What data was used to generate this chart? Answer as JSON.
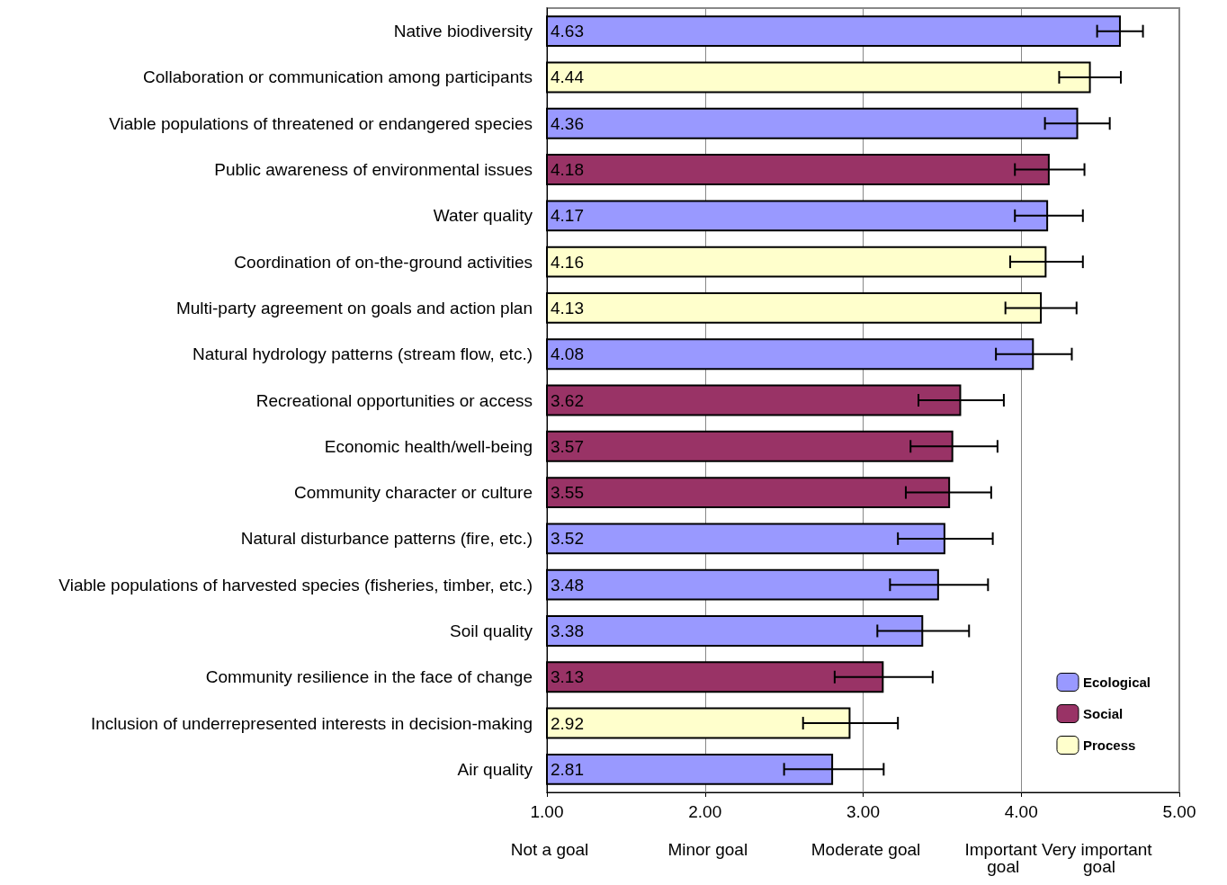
{
  "chart_data": {
    "type": "bar",
    "orientation": "horizontal",
    "categories": [
      "Native biodiversity",
      "Collaboration or communication among participants",
      "Viable populations of threatened or endangered species",
      "Public awareness of environmental issues",
      "Water quality",
      "Coordination of on-the-ground activities",
      "Multi-party agreement on goals and action plan",
      "Natural hydrology patterns (stream flow, etc.)",
      "Recreational opportunities or access",
      "Economic health/well-being",
      "Community character or culture",
      "Natural disturbance patterns (fire, etc.)",
      "Viable populations of harvested species (fisheries, timber, etc.)",
      "Soil quality",
      "Community resilience in the face of change",
      "Inclusion of underrepresented interests in decision-making",
      "Air quality"
    ],
    "series": [
      {
        "name": "Ecological",
        "color": "#9999ff",
        "values": [
          4.63,
          null,
          4.36,
          null,
          4.17,
          null,
          null,
          4.08,
          null,
          null,
          null,
          3.52,
          3.48,
          3.38,
          null,
          null,
          2.81
        ],
        "errors": [
          [
            4.48,
            4.77
          ],
          null,
          [
            4.15,
            4.56
          ],
          null,
          [
            3.96,
            4.39
          ],
          null,
          null,
          [
            3.84,
            4.32
          ],
          null,
          null,
          null,
          [
            3.22,
            3.82
          ],
          [
            3.17,
            3.79
          ],
          [
            3.09,
            3.67
          ],
          null,
          null,
          [
            2.5,
            3.13
          ]
        ]
      },
      {
        "name": "Social",
        "color": "#993366",
        "values": [
          null,
          null,
          null,
          4.18,
          null,
          null,
          null,
          null,
          3.62,
          3.57,
          3.55,
          null,
          null,
          null,
          3.13,
          null,
          null
        ],
        "errors": [
          null,
          null,
          null,
          [
            3.96,
            4.4
          ],
          null,
          null,
          null,
          null,
          [
            3.35,
            3.89
          ],
          [
            3.3,
            3.85
          ],
          [
            3.27,
            3.81
          ],
          null,
          null,
          null,
          [
            2.82,
            3.44
          ],
          null,
          null
        ]
      },
      {
        "name": "Process",
        "color": "#ffffcc",
        "values": [
          null,
          4.44,
          null,
          null,
          null,
          4.16,
          4.13,
          null,
          null,
          null,
          null,
          null,
          null,
          null,
          null,
          2.92,
          null
        ],
        "errors": [
          null,
          [
            4.24,
            4.63
          ],
          null,
          null,
          null,
          [
            3.93,
            4.39
          ],
          [
            3.9,
            4.35
          ],
          null,
          null,
          null,
          null,
          null,
          null,
          null,
          null,
          [
            2.62,
            3.22
          ],
          null
        ]
      }
    ],
    "xlim": [
      1,
      5
    ],
    "xticks": [
      {
        "value": 1,
        "label": "1.00"
      },
      {
        "value": 2,
        "label": "2.00"
      },
      {
        "value": 3,
        "label": "3.00"
      },
      {
        "value": 4,
        "label": "4.00"
      },
      {
        "value": 5,
        "label": "5.00"
      }
    ],
    "annotations": [
      "Not a goal",
      "Minor goal",
      "Moderate goal",
      "Important goal",
      "Very important goal"
    ],
    "data_labels": true,
    "grid": "x",
    "legend": "bottom right"
  }
}
